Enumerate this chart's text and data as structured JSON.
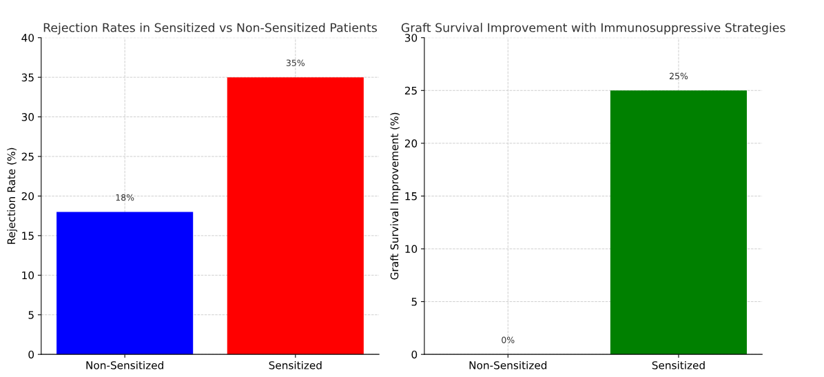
{
  "chart_data": [
    {
      "type": "bar",
      "title": "Rejection Rates in Sensitized vs Non-Sensitized Patients",
      "ylabel": "Rejection Rate (%)",
      "categories": [
        "Non-Sensitized",
        "Sensitized"
      ],
      "values": [
        18,
        35
      ],
      "colors": [
        "#0000ff",
        "#ff0000"
      ],
      "value_labels": [
        "18%",
        "35%"
      ],
      "ylim": [
        0,
        40
      ],
      "yticks": [
        0,
        5,
        10,
        15,
        20,
        25,
        30,
        35,
        40
      ],
      "grid": true
    },
    {
      "type": "bar",
      "title": "Graft Survival Improvement with Immunosuppressive Strategies",
      "ylabel": "Graft Survival Improvement (%)",
      "categories": [
        "Non-Sensitized",
        "Sensitized"
      ],
      "values": [
        0,
        25
      ],
      "colors": [
        "#0000ff",
        "#008000"
      ],
      "value_labels": [
        "0%",
        "25%"
      ],
      "ylim": [
        0,
        30
      ],
      "yticks": [
        0,
        5,
        10,
        15,
        20,
        25,
        30
      ],
      "grid": true
    }
  ]
}
